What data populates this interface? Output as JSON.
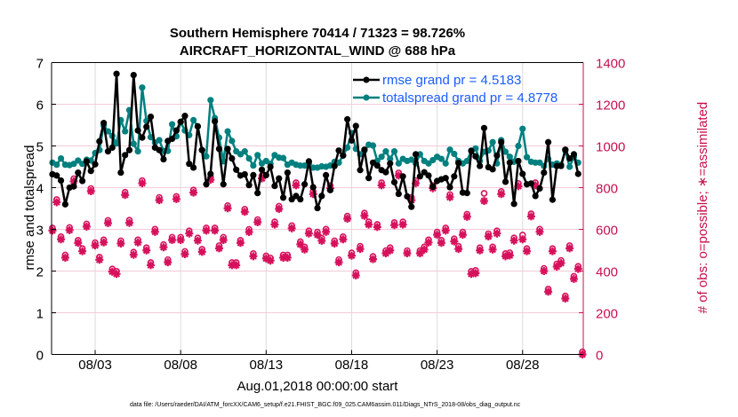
{
  "chart_data": {
    "type": "line",
    "title": [
      "Southern Hemisphere 70414 / 71323 = 98.726%",
      "AIRCRAFT_HORIZONTAL_WIND @ 688 hPa"
    ],
    "xlabel": "Aug.01,2018 00:00:00 start",
    "ylabel": "rmse and totalspread",
    "ylabel_right": "# of obs: o=possible; ∗=assimilated",
    "footer": "data file: /Users/raeder/DAI/ATM_forcXX/CAM6_setup/f.e21.FHIST_BGC.f09_025.CAM6assim.011/Diags_NTrS_2018-08/obs_diag_output.nc",
    "x_units": "days since Aug.01,2018 00:00:00",
    "xlim": [
      -0.55,
      30.55
    ],
    "ylim": [
      0,
      7
    ],
    "ylim_right": [
      0,
      1400
    ],
    "x_start": -0.5,
    "x_step": 0.25,
    "xticks": [
      {
        "value": 2,
        "label": "08/03"
      },
      {
        "value": 7,
        "label": "08/08"
      },
      {
        "value": 12,
        "label": "08/13"
      },
      {
        "value": 17,
        "label": "08/18"
      },
      {
        "value": 22,
        "label": "08/23"
      },
      {
        "value": 27,
        "label": "08/28"
      }
    ],
    "yticks": [
      "0",
      "1",
      "2",
      "3",
      "4",
      "5",
      "6",
      "7"
    ],
    "yticks_right": [
      "0",
      "200",
      "400",
      "600",
      "800",
      "1000",
      "1200",
      "1400"
    ],
    "grid": true,
    "legend_position": "top-right",
    "colors": {
      "rmse": "#000000",
      "totalspread": "#00807f",
      "obs": "#d6115c",
      "legend_text": "#1a5cff",
      "right_axis": "#c8104f"
    },
    "series": [
      {
        "name": "rmse grand pr = 4.5183",
        "key": "rmse",
        "values": [
          4.32,
          4.29,
          4.17,
          3.6,
          4.0,
          4.03,
          4.36,
          4.16,
          4.63,
          4.4,
          4.56,
          5.11,
          5.55,
          4.87,
          4.96,
          6.73,
          4.36,
          4.78,
          4.9,
          6.7,
          5.37,
          5.2,
          5.46,
          5.7,
          4.96,
          4.9,
          4.68,
          5.12,
          5.17,
          5.37,
          5.58,
          5.72,
          4.57,
          4.48,
          5.47,
          4.9,
          4.08,
          4.33,
          5.59,
          4.93,
          4.08,
          4.93,
          4.7,
          4.43,
          4.29,
          4.32,
          4.06,
          4.3,
          3.87,
          4.43,
          4.3,
          4.5,
          4.04,
          4.22,
          3.76,
          4.36,
          3.72,
          3.8,
          3.72,
          4.08,
          4.63,
          4.01,
          3.51,
          3.8,
          4.3,
          3.94,
          4.52,
          4.89,
          4.77,
          5.64,
          5.13,
          5.48,
          4.42,
          4.91,
          4.23,
          4.6,
          4.53,
          4.42,
          4.37,
          4.58,
          4.13,
          3.85,
          4.27,
          3.79,
          3.54,
          4.8,
          4.27,
          4.37,
          4.29,
          4.02,
          4.16,
          4.2,
          4.23,
          4.01,
          4.27,
          4.59,
          3.88,
          3.87,
          4.88,
          4.75,
          4.52,
          5.43,
          4.49,
          4.44,
          4.77,
          5.09,
          4.14,
          4.6,
          3.61,
          4.64,
          4.33,
          4.08,
          4.1,
          3.8,
          3.98,
          4.36,
          5.09,
          3.71,
          4.52,
          4.52,
          4.91,
          4.7,
          4.8,
          4.33
        ]
      },
      {
        "name": "totalspread grand pr = 4.8778",
        "key": "totalspread",
        "values": [
          4.6,
          4.55,
          4.7,
          4.55,
          4.54,
          4.57,
          4.65,
          4.57,
          4.67,
          4.65,
          4.83,
          4.9,
          5.49,
          5.35,
          5.24,
          5.06,
          5.62,
          5.35,
          5.86,
          5.05,
          4.87,
          6.4,
          5.6,
          5.21,
          5.08,
          5.14,
          4.88,
          4.88,
          5.52,
          5.23,
          5.57,
          5.37,
          5.26,
          5.62,
          5.47,
          4.9,
          4.75,
          6.1,
          5.67,
          5.2,
          4.63,
          5.35,
          5.12,
          4.87,
          4.8,
          4.87,
          4.7,
          4.53,
          4.78,
          4.58,
          4.64,
          4.57,
          4.78,
          4.72,
          4.71,
          4.55,
          4.6,
          4.55,
          4.53,
          4.53,
          4.57,
          4.48,
          4.48,
          4.51,
          4.5,
          4.53,
          4.62,
          4.6,
          4.77,
          4.96,
          5.31,
          4.93,
          4.8,
          4.89,
          5.03,
          5.01,
          4.64,
          4.74,
          4.87,
          4.69,
          4.87,
          4.58,
          4.69,
          4.64,
          4.67,
          4.58,
          4.8,
          4.64,
          4.58,
          4.66,
          4.74,
          4.69,
          4.58,
          4.91,
          4.81,
          4.64,
          4.58,
          4.64,
          4.89,
          4.94,
          4.64,
          4.86,
          4.89,
          5.09,
          4.58,
          5.14,
          4.86,
          4.74,
          4.62,
          5.0,
          5.41,
          4.73,
          4.62,
          4.6,
          4.6,
          4.52,
          4.69,
          4.55,
          4.58,
          4.55,
          4.89,
          4.5,
          4.74,
          4.6
        ]
      },
      {
        "name": "obs possible",
        "key": "obs_possible",
        "axis": "right",
        "values": [
          594,
          730,
          552,
          464,
          596,
          830,
          535,
          495,
          613,
          783,
          523,
          454,
          537,
          630,
          397,
          386,
          532,
          765,
          631,
          478,
          537,
          821,
          499,
          428,
          588,
          740,
          514,
          442,
          549,
          745,
          549,
          481,
          580,
          776,
          546,
          492,
          594,
          838,
          594,
          509,
          549,
          701,
          428,
          428,
          535,
          684,
          587,
          471,
          634,
          844,
          460,
          450,
          623,
          698,
          464,
          464,
          605,
          811,
          528,
          503,
          580,
          769,
          574,
          545,
          588,
          797,
          532,
          442,
          552,
          651,
          474,
          379,
          506,
          665,
          623,
          457,
          611,
          811,
          485,
          499,
          620,
          858,
          623,
          485,
          740,
          821,
          485,
          503,
          537,
          797,
          574,
          535,
          594,
          754,
          542,
          506,
          574,
          660,
          386,
          390,
          499,
          760,
          566,
          503,
          580,
          769,
          471,
          475,
          546,
          807,
          560,
          495,
          662,
          811,
          588,
          400,
          301,
          495,
          421,
          438,
          268,
          509,
          362,
          410,
          0
        ]
      },
      {
        "name": "obs assimilated",
        "key": "obs_assimilated",
        "axis": "right",
        "values": [
          594,
          730,
          552,
          464,
          596,
          830,
          535,
          495,
          613,
          783,
          523,
          454,
          537,
          630,
          397,
          386,
          532,
          765,
          631,
          478,
          537,
          821,
          499,
          428,
          588,
          740,
          514,
          442,
          549,
          745,
          549,
          481,
          580,
          776,
          546,
          492,
          594,
          838,
          594,
          509,
          549,
          701,
          428,
          428,
          535,
          684,
          587,
          471,
          634,
          844,
          460,
          450,
          623,
          698,
          464,
          464,
          605,
          811,
          528,
          503,
          580,
          769,
          574,
          545,
          588,
          797,
          532,
          442,
          552,
          651,
          474,
          379,
          506,
          665,
          623,
          457,
          611,
          811,
          485,
          499,
          620,
          858,
          623,
          485,
          740,
          821,
          485,
          503,
          537,
          797,
          574,
          535,
          594,
          754,
          542,
          506,
          574,
          660,
          386,
          390,
          499,
          736,
          566,
          503,
          580,
          769,
          471,
          475,
          546,
          807,
          552,
          495,
          662,
          811,
          588,
          400,
          301,
          495,
          421,
          438,
          268,
          509,
          362,
          410,
          0
        ]
      }
    ]
  }
}
